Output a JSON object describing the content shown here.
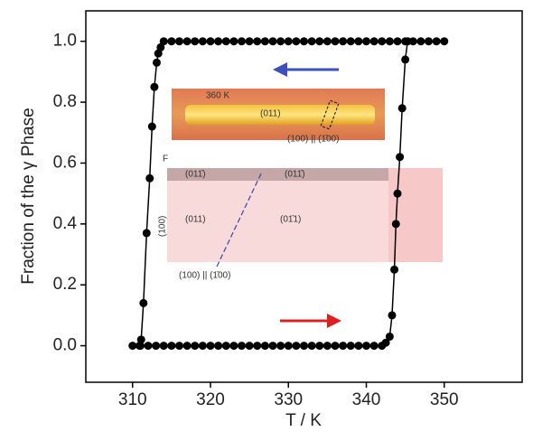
{
  "chart_data": {
    "type": "line",
    "x_label": "T / K",
    "y_label": "Fraction of the γ Phase",
    "xlim": [
      304,
      360
    ],
    "xticks": [
      310,
      320,
      330,
      340,
      350
    ],
    "ylim": [
      -0.12,
      1.1
    ],
    "yticks": [
      {
        "value": 0,
        "label": "0.0"
      },
      0.2,
      0.4,
      0.6,
      0.8,
      {
        "value": 1,
        "label": "1.0"
      }
    ],
    "series": [
      {
        "color": "#000000",
        "x": [
          310,
          311,
          312,
          313,
          314,
          315,
          316,
          317,
          318,
          319,
          320,
          321,
          322,
          323,
          324,
          325,
          326,
          327,
          328,
          329,
          330,
          331,
          332,
          333,
          334,
          335,
          336,
          337,
          338,
          339,
          340,
          341,
          342,
          342.5,
          343,
          343.3,
          343.6,
          343.8,
          344,
          344.3,
          344.6,
          345,
          345.3
        ],
        "values": [
          0,
          0,
          0,
          0,
          0,
          0,
          0,
          0,
          0,
          0,
          0,
          0,
          0,
          0,
          0,
          0,
          0,
          0,
          0,
          0,
          0,
          0,
          0,
          0,
          0,
          0,
          0,
          0,
          0,
          0,
          0,
          0,
          0,
          0.01,
          0.03,
          0.1,
          0.25,
          0.4,
          0.5,
          0.62,
          0.78,
          0.94,
          1
        ]
      },
      {
        "color": "#000000",
        "x": [
          350,
          349,
          348,
          347,
          346,
          345,
          344,
          343,
          342,
          341,
          340,
          339,
          338,
          337,
          336,
          335,
          334,
          333,
          332,
          331,
          330,
          329,
          328,
          327,
          326,
          325,
          324,
          323,
          322,
          321,
          320,
          319,
          318,
          317,
          316,
          315,
          314,
          313.6,
          313.3,
          313.1,
          312.8,
          312.5,
          312.2,
          311.8,
          311.4,
          311.1,
          310.9
        ],
        "values": [
          1,
          1,
          1,
          1,
          1,
          1,
          1,
          1,
          1,
          1,
          1,
          1,
          1,
          1,
          1,
          1,
          1,
          1,
          1,
          1,
          1,
          1,
          1,
          1,
          1,
          1,
          1,
          1,
          1,
          1,
          1,
          1,
          1,
          1,
          1,
          1,
          1,
          0.98,
          0.96,
          0.93,
          0.85,
          0.72,
          0.55,
          0.37,
          0.14,
          0.02,
          0
        ]
      }
    ],
    "annotations": [
      "360 K",
      "(011)",
      "(100) || (1̄00)",
      "F",
      "(011̄)",
      "(011̄)",
      "(011)",
      "(01̄1)",
      "(100)",
      "(100) || (1̄00)"
    ]
  }
}
